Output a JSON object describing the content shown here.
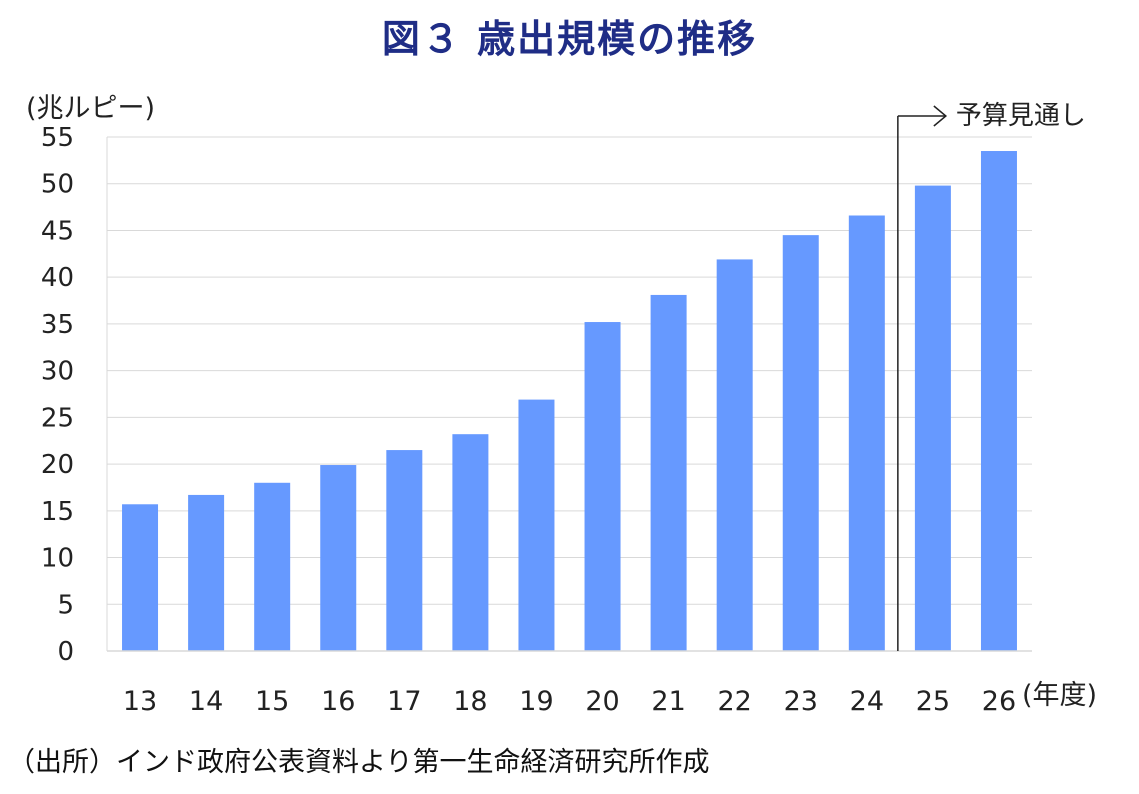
{
  "chart_data": {
    "type": "bar",
    "title": "図３ 歳出規模の推移",
    "ylabel": "(兆ルピー)",
    "xlabel": "(年度)",
    "source": "（出所）インド政府公表資料より第一生命経済研究所作成",
    "annotation": "予算見通し",
    "categories": [
      "13",
      "14",
      "15",
      "16",
      "17",
      "18",
      "19",
      "20",
      "21",
      "22",
      "23",
      "24",
      "25",
      "26"
    ],
    "series": [
      {
        "values": [
          15.7,
          16.7,
          18.0,
          19.9,
          21.5,
          23.2,
          26.9,
          35.2,
          38.1,
          41.9,
          44.5,
          46.6,
          49.8,
          53.5
        ]
      }
    ],
    "ylim": [
      0,
      55
    ],
    "yticks": [
      0,
      5,
      10,
      15,
      20,
      25,
      30,
      35,
      40,
      45,
      50,
      55
    ],
    "grid": true,
    "bar_color": "#6699ff",
    "grid_color": "#d9d9d9",
    "title_color": "#1f2d86",
    "forecast_from_category": "25"
  }
}
